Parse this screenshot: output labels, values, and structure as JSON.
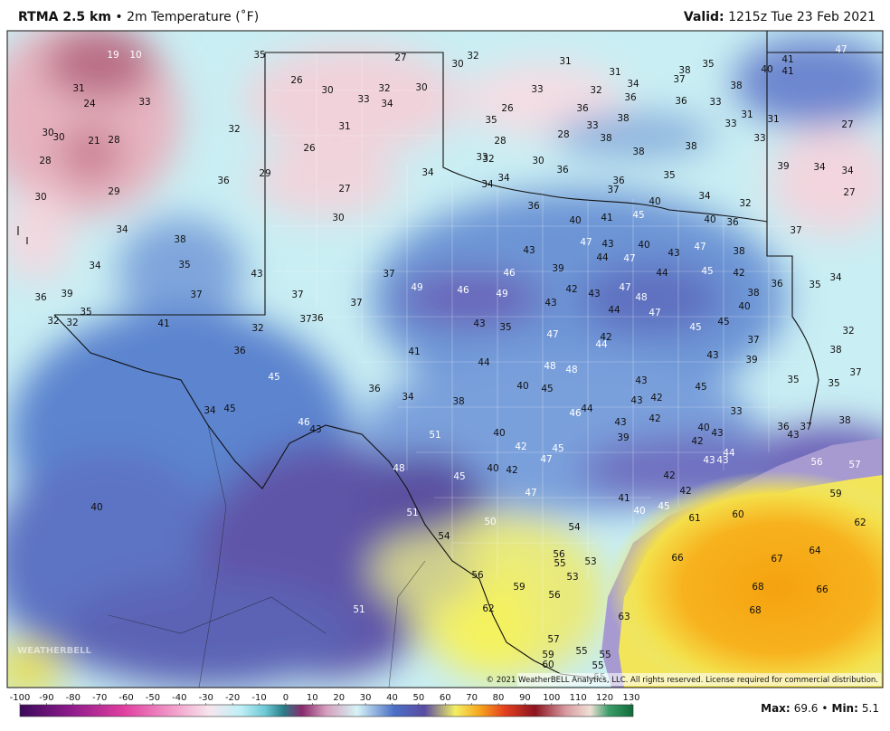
{
  "header": {
    "model": "RTMA 2.5 km",
    "separator": "•",
    "field": "2m Temperature (˚F)",
    "valid_label": "Valid:",
    "valid_time": "1215z Tue 23 Feb 2021"
  },
  "map": {
    "copyright": "© 2021 WeatherBELL Analytics, LLC. All rights reserved. License required for commercial distribution.",
    "logo": "WEATHERBELL",
    "stations": [
      19,
      10,
      35,
      27,
      30,
      32,
      31,
      31,
      34,
      38,
      35,
      37,
      40,
      41,
      41,
      47,
      38,
      31,
      24,
      33,
      26,
      30,
      33,
      32,
      30,
      34,
      33,
      32,
      36,
      36,
      33,
      36,
      26,
      35,
      33,
      38,
      33,
      31,
      31,
      27,
      30,
      30,
      21,
      28,
      32,
      31,
      28,
      28,
      38,
      33,
      38,
      38,
      28,
      26,
      33,
      32,
      30,
      36,
      39,
      34,
      34,
      30,
      29,
      36,
      29,
      27,
      34,
      34,
      34,
      36,
      35,
      37,
      40,
      34,
      32,
      27,
      36,
      45,
      40,
      41,
      40,
      36,
      37,
      30,
      34,
      38,
      43,
      47,
      43,
      40,
      43,
      47,
      38,
      44,
      47,
      34,
      35,
      43,
      37,
      46,
      39,
      44,
      45,
      42,
      35,
      34,
      36,
      39,
      37,
      49,
      46,
      49,
      42,
      43,
      47,
      48,
      38,
      37,
      36,
      43,
      35,
      32,
      32,
      37,
      41,
      40,
      44,
      47,
      37,
      36,
      32,
      43,
      35,
      45,
      45,
      42,
      44,
      47,
      37,
      32,
      36,
      41,
      43,
      39,
      38,
      44,
      48,
      48,
      45,
      35,
      35,
      37,
      36,
      34,
      38,
      40,
      45,
      43,
      42,
      43,
      45,
      34,
      45,
      46,
      44,
      33,
      42,
      43,
      40,
      43,
      36,
      37,
      43,
      38,
      46,
      43,
      51,
      40,
      39,
      42,
      42,
      45,
      47,
      43,
      43,
      44,
      56,
      57,
      48,
      45,
      40,
      42,
      42,
      42,
      59,
      47,
      41,
      40,
      45,
      61,
      60,
      40,
      51,
      50,
      54,
      54,
      62,
      64,
      56,
      55,
      53,
      66,
      67,
      56,
      53,
      59,
      56,
      68,
      66,
      51,
      62,
      68,
      63,
      57,
      55,
      59,
      55,
      60,
      55,
      55
    ]
  },
  "colorbar": {
    "ticks": [
      -100,
      -90,
      -80,
      -70,
      -60,
      -50,
      -40,
      -30,
      -20,
      -10,
      0,
      10,
      20,
      30,
      40,
      50,
      60,
      70,
      80,
      90,
      100,
      110,
      120,
      130
    ]
  },
  "stats": {
    "max_label": "Max:",
    "max": 69.6,
    "separator": "•",
    "min_label": "Min:",
    "min": 5.1
  }
}
